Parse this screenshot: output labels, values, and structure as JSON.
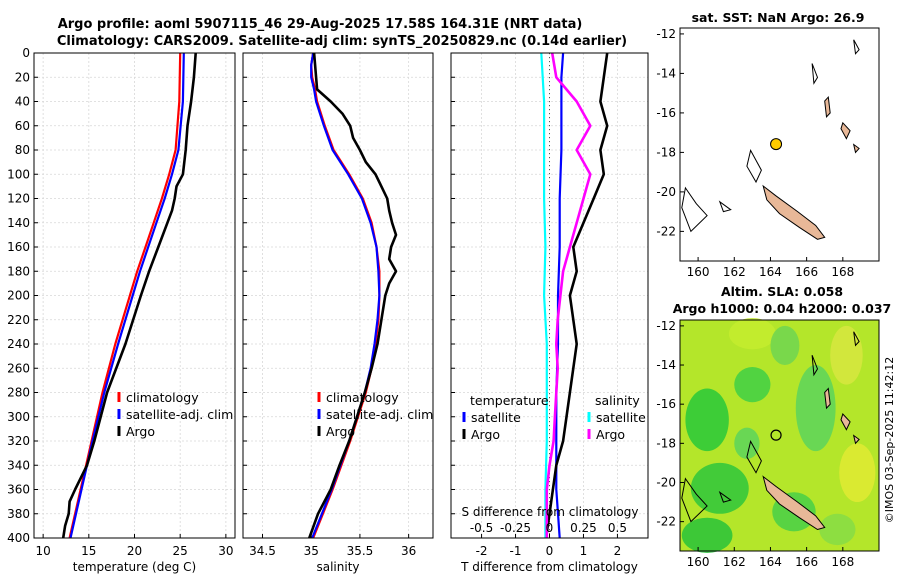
{
  "title": {
    "line1": "Argo profile: aoml 5907115_46 29-Aug-2025 17.58S 164.31E (NRT data)",
    "line2": "Climatology: CARS2009. Satellite-adj clim: synTS_20250829.nc (0.14d earlier)"
  },
  "watermark": "©IMOS 03-Sep-2025 11:42:12",
  "colors": {
    "climatology": "#ff0000",
    "satellite": "#0000ff",
    "argo": "#000000",
    "sat_salinity": "#00ffff",
    "argo_salinity": "#ff00ff",
    "marker": "#ffcc00"
  },
  "chart_data": [
    {
      "id": "temperature",
      "type": "line",
      "xlabel": "temperature (deg C)",
      "ylabel": "",
      "xlim": [
        9,
        31
      ],
      "ylim": [
        400,
        0
      ],
      "xticks": [
        10,
        15,
        20,
        25,
        30
      ],
      "yticks": [
        0,
        20,
        40,
        60,
        80,
        100,
        120,
        140,
        160,
        180,
        200,
        220,
        240,
        260,
        280,
        300,
        320,
        340,
        360,
        380,
        400
      ],
      "grid": true,
      "legend": {
        "position": "lower-right",
        "entries": [
          "climatology",
          "satellite-adj. clim",
          "Argo"
        ]
      },
      "series": [
        {
          "name": "climatology",
          "color": "#ff0000",
          "depth": [
            0,
            40,
            80,
            100,
            120,
            140,
            160,
            180,
            200,
            240,
            280,
            320,
            360,
            400
          ],
          "values": [
            25.0,
            24.9,
            24.5,
            23.8,
            23.0,
            22.1,
            21.2,
            20.3,
            19.5,
            17.9,
            16.5,
            15.3,
            14.1,
            12.9
          ]
        },
        {
          "name": "satellite-adj. clim",
          "color": "#0000ff",
          "depth": [
            0,
            40,
            80,
            100,
            120,
            140,
            160,
            180,
            200,
            240,
            280,
            320,
            360,
            400
          ],
          "values": [
            25.4,
            25.3,
            24.8,
            24.1,
            23.3,
            22.4,
            21.5,
            20.6,
            19.8,
            18.2,
            16.7,
            15.4,
            14.2,
            13.0
          ]
        },
        {
          "name": "Argo",
          "color": "#000000",
          "depth": [
            0,
            20,
            40,
            60,
            80,
            100,
            110,
            120,
            130,
            140,
            160,
            180,
            200,
            240,
            280,
            300,
            320,
            340,
            360,
            370,
            380,
            390,
            400
          ],
          "values": [
            26.7,
            26.5,
            26.2,
            25.8,
            25.6,
            25.3,
            24.6,
            24.4,
            24.1,
            23.6,
            22.6,
            21.6,
            20.7,
            19.0,
            17.0,
            16.3,
            15.6,
            14.8,
            13.5,
            12.9,
            12.8,
            12.4,
            12.2
          ]
        }
      ]
    },
    {
      "id": "salinity",
      "type": "line",
      "xlabel": "salinity",
      "ylabel": "",
      "xlim": [
        34.3,
        36.25
      ],
      "ylim": [
        400,
        0
      ],
      "xticks": [
        34.5,
        35,
        35.5,
        36
      ],
      "grid": true,
      "legend": {
        "position": "lower-right",
        "entries": [
          "climatology",
          "satellite-adj. clim",
          "Argo"
        ]
      },
      "series": [
        {
          "name": "climatology",
          "color": "#ff0000",
          "depth": [
            0,
            10,
            20,
            30,
            40,
            60,
            80,
            100,
            120,
            140,
            160,
            180,
            200,
            220,
            240,
            260,
            280,
            300,
            320,
            340,
            360,
            380,
            400
          ],
          "values": [
            35.02,
            35.0,
            35.01,
            35.04,
            35.06,
            35.14,
            35.23,
            35.39,
            35.53,
            35.62,
            35.67,
            35.7,
            35.7,
            35.69,
            35.66,
            35.62,
            35.56,
            35.48,
            35.4,
            35.31,
            35.22,
            35.12,
            35.02
          ]
        },
        {
          "name": "satellite-adj. clim",
          "color": "#0000ff",
          "depth": [
            0,
            10,
            20,
            30,
            40,
            60,
            80,
            100,
            120,
            140,
            160,
            180,
            200,
            220,
            240,
            260,
            280,
            300,
            320,
            340,
            360,
            380,
            400
          ],
          "values": [
            35.02,
            35.0,
            35.0,
            35.03,
            35.05,
            35.13,
            35.22,
            35.38,
            35.52,
            35.61,
            35.67,
            35.69,
            35.7,
            35.68,
            35.65,
            35.61,
            35.55,
            35.47,
            35.39,
            35.3,
            35.21,
            35.11,
            35.01
          ]
        },
        {
          "name": "Argo",
          "color": "#000000",
          "depth": [
            0,
            10,
            20,
            30,
            40,
            50,
            60,
            70,
            80,
            90,
            100,
            110,
            120,
            130,
            140,
            150,
            160,
            170,
            180,
            190,
            200,
            220,
            240,
            260,
            280,
            300,
            320,
            340,
            360,
            380,
            400
          ],
          "values": [
            35.03,
            35.04,
            35.05,
            35.06,
            35.2,
            35.32,
            35.4,
            35.43,
            35.5,
            35.56,
            35.66,
            35.72,
            35.78,
            35.8,
            35.83,
            35.87,
            35.82,
            35.8,
            35.87,
            35.8,
            35.76,
            35.72,
            35.68,
            35.62,
            35.55,
            35.47,
            35.39,
            35.29,
            35.2,
            35.07,
            34.98
          ]
        }
      ]
    },
    {
      "id": "difference",
      "type": "line",
      "xlabel": "T difference from climatology",
      "xlabel_top": "S difference from climatology",
      "xlim": [
        -2.9,
        2.9
      ],
      "ylim": [
        400,
        0
      ],
      "xticks": [
        -2,
        -1,
        0,
        1,
        2
      ],
      "xticks_top_labels": [
        "-0.5",
        "-0.25",
        "0",
        "0.25",
        "0.5"
      ],
      "grid": true,
      "legend": {
        "position": "lower-center",
        "entries": [
          "temperature",
          "satellite",
          "Argo",
          "salinity",
          "satellite",
          "Argo"
        ]
      },
      "series": [
        {
          "name": "temperature satellite",
          "color": "#0000ff",
          "depth": [
            0,
            20,
            40,
            80,
            120,
            160,
            200,
            240,
            280,
            320,
            360,
            400
          ],
          "values": [
            0.4,
            0.35,
            0.35,
            0.35,
            0.3,
            0.3,
            0.25,
            0.25,
            0.2,
            0.2,
            0.2,
            0.3
          ]
        },
        {
          "name": "temperature Argo",
          "color": "#000000",
          "depth": [
            0,
            20,
            40,
            60,
            80,
            100,
            120,
            140,
            160,
            180,
            200,
            240,
            280,
            300,
            320,
            340,
            360,
            380,
            400
          ],
          "values": [
            1.7,
            1.6,
            1.5,
            1.7,
            1.5,
            1.6,
            1.3,
            1.0,
            0.7,
            0.8,
            0.6,
            0.8,
            0.6,
            0.5,
            0.4,
            0.2,
            0.1,
            0.0,
            -0.1
          ]
        },
        {
          "name": "salinity satellite",
          "color": "#00ffff",
          "depth": [
            0,
            40,
            80,
            120,
            160,
            200,
            240,
            280,
            320,
            360,
            400
          ],
          "values": [
            -0.06,
            -0.04,
            -0.04,
            -0.04,
            -0.03,
            -0.04,
            -0.02,
            -0.02,
            -0.02,
            -0.03,
            -0.03
          ]
        },
        {
          "name": "salinity Argo",
          "color": "#ff00ff",
          "depth": [
            0,
            20,
            40,
            60,
            80,
            100,
            120,
            140,
            160,
            180,
            200,
            220,
            240,
            260,
            280,
            300,
            320,
            340,
            360,
            380,
            400
          ],
          "values": [
            0.02,
            0.05,
            0.2,
            0.3,
            0.2,
            0.3,
            0.25,
            0.2,
            0.15,
            0.1,
            0.08,
            0.06,
            0.05,
            0.06,
            0.05,
            0.04,
            0.03,
            0.0,
            -0.02,
            -0.02,
            -0.02
          ]
        }
      ]
    },
    {
      "id": "sst-map",
      "type": "scatter",
      "title": "sat. SST: NaN Argo: 26.9",
      "xlim": [
        159,
        170
      ],
      "ylim": [
        -23.5,
        -11.7
      ],
      "xticks": [
        160,
        162,
        164,
        166,
        168
      ],
      "yticks": [
        -12,
        -14,
        -16,
        -18,
        -20,
        -22
      ],
      "points": [
        {
          "lon": 164.31,
          "lat": -17.58,
          "label": "Argo"
        }
      ]
    },
    {
      "id": "sla-map",
      "type": "heatmap",
      "title": "Altim. SLA: 0.058",
      "subtitle": "Argo h1000: 0.04 h2000: 0.037",
      "xlim": [
        159,
        170
      ],
      "ylim": [
        -23.5,
        -11.7
      ],
      "xticks": [
        160,
        162,
        164,
        166,
        168
      ],
      "yticks": [
        -12,
        -14,
        -16,
        -18,
        -20,
        -22
      ],
      "points": [
        {
          "lon": 164.31,
          "lat": -17.58,
          "label": "Argo"
        }
      ]
    }
  ]
}
